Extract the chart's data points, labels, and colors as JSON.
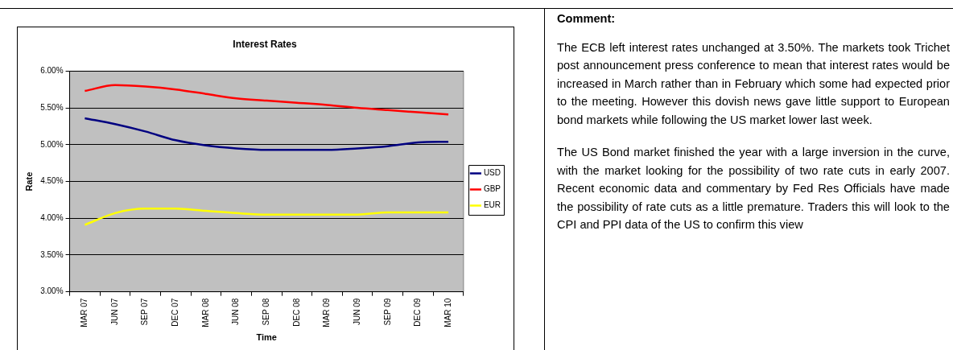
{
  "chart_data": {
    "type": "line",
    "title": "Interest Rates",
    "xlabel": "Time",
    "ylabel": "Rate",
    "categories": [
      "MAR 07",
      "JUN 07",
      "SEP 07",
      "DEC 07",
      "MAR 08",
      "JUN 08",
      "SEP 08",
      "DEC 08",
      "MAR 09",
      "JUN 09",
      "SEP 09",
      "DEC 09",
      "MAR 10"
    ],
    "series": [
      {
        "name": "USD",
        "color": "#000080",
        "values": [
          5.36,
          5.28,
          5.18,
          5.06,
          4.99,
          4.95,
          4.93,
          4.93,
          4.93,
          4.95,
          4.98,
          5.03,
          5.04
        ]
      },
      {
        "name": "GBP",
        "color": "#ff0000",
        "values": [
          5.73,
          5.81,
          5.79,
          5.75,
          5.69,
          5.63,
          5.6,
          5.57,
          5.54,
          5.5,
          5.47,
          5.44,
          5.41
        ]
      },
      {
        "name": "EUR",
        "color": "#ffff00",
        "values": [
          3.91,
          4.07,
          4.13,
          4.13,
          4.1,
          4.07,
          4.05,
          4.05,
          4.05,
          4.05,
          4.08,
          4.08,
          4.08
        ]
      }
    ],
    "ylim": [
      3,
      6
    ],
    "yticks": [
      {
        "value": 3,
        "label": "3.00%"
      },
      {
        "value": 3.5,
        "label": "3.50%"
      },
      {
        "value": 4,
        "label": "4.00%"
      },
      {
        "value": 4.5,
        "label": "4.50%"
      },
      {
        "value": 5,
        "label": "5.00%"
      },
      {
        "value": 5.5,
        "label": "5.50%"
      },
      {
        "value": 6,
        "label": "6.00%"
      }
    ],
    "grid": "y",
    "legend": "right",
    "marker": "none",
    "line_style": "solid",
    "annotations": [
      "Comment:",
      "The ECB left interest rates unchanged at 3.50%. The markets took Trichet post announcement press conference to mean that interest rates would be increased in March rather than in February which some had expected prior to the meeting. However this dovish news gave little support to European bond markets while following the US market lower last week.",
      "The US Bond market finished the year with a large inversion in the curve, with the market looking for the possibility of two rate cuts in early 2007. Recent economic data and commentary by Fed Res Officials have made the possibility of rate cuts as a little premature. Traders this will look to the CPI and PPI data of the US to confirm this view"
    ]
  }
}
